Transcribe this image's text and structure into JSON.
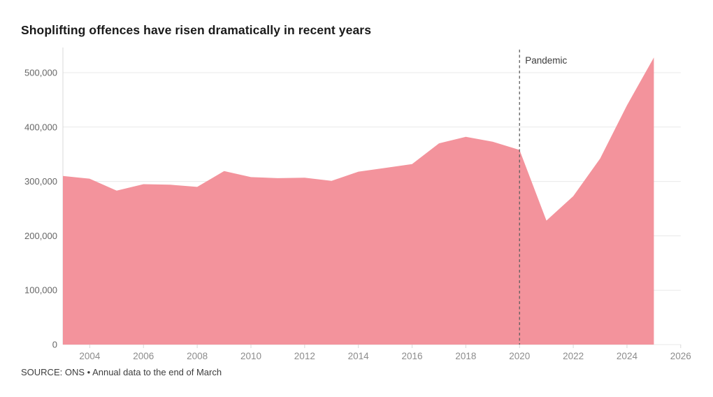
{
  "header": {
    "title": "Shoplifting offences have risen dramatically in recent years"
  },
  "footer": {
    "source": "SOURCE: ONS • Annual data to the end of March"
  },
  "chart_data": {
    "type": "area",
    "title": "Shoplifting offences have risen dramatically in recent years",
    "series_name": "Shoplifting offences",
    "x": [
      2003,
      2004,
      2005,
      2006,
      2007,
      2008,
      2009,
      2010,
      2011,
      2012,
      2013,
      2014,
      2015,
      2016,
      2017,
      2018,
      2019,
      2020,
      2021,
      2022,
      2023,
      2024,
      2025
    ],
    "values": [
      310000,
      305000,
      283000,
      295000,
      294000,
      290000,
      319000,
      308000,
      306000,
      307000,
      301000,
      318000,
      325000,
      332000,
      370000,
      382000,
      373000,
      358000,
      228000,
      273000,
      342000,
      440000,
      528000
    ],
    "xlabel": "",
    "ylabel": "",
    "xlim": [
      2003,
      2026
    ],
    "ylim": [
      0,
      550000
    ],
    "grid": "horizontal",
    "legend": "none",
    "y_ticks": [
      0,
      100000,
      200000,
      300000,
      400000,
      500000
    ],
    "y_tick_labels": [
      "0",
      "100,000",
      "200,000",
      "300,000",
      "400,000",
      "500,000"
    ],
    "x_ticks": [
      2004,
      2006,
      2008,
      2010,
      2012,
      2014,
      2016,
      2018,
      2020,
      2022,
      2024,
      2026
    ],
    "x_tick_labels": [
      "2004",
      "2006",
      "2008",
      "2010",
      "2012",
      "2014",
      "2016",
      "2018",
      "2020",
      "2022",
      "2024",
      "2026"
    ],
    "annotation": {
      "label": "Pandemic",
      "x": 2020,
      "style": "dashed-vertical-line"
    },
    "colors": {
      "area_fill": "#f3939c",
      "gridline": "#e8e8e8",
      "axis_line": "#d9d9d9",
      "dashed_line": "#5f5f5f",
      "x_tick_label": "#8c8c8c",
      "y_tick_label": "#666666",
      "annotation_text": "#3c3c3c",
      "title_text": "#1a1a1a",
      "source_text": "#3d3d3d"
    }
  }
}
